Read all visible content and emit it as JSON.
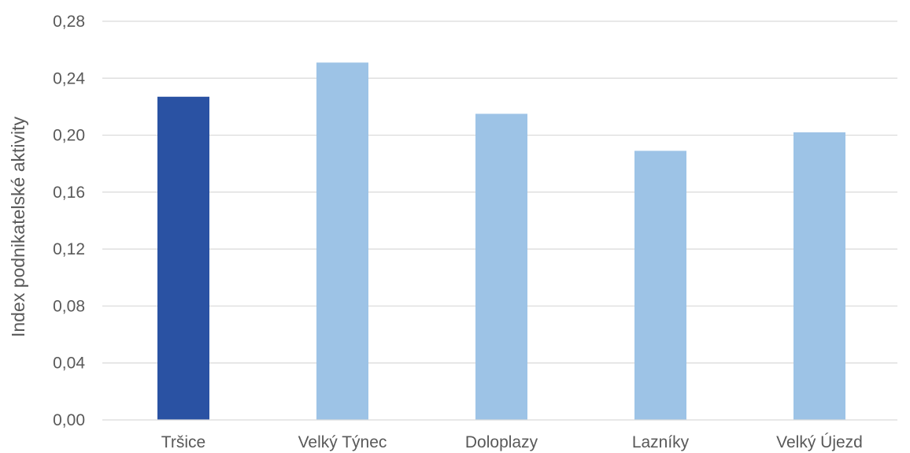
{
  "chart_data": {
    "type": "bar",
    "title": "",
    "xlabel": "",
    "ylabel": "Index podnikatelské aktivity",
    "categories": [
      "Tršice",
      "Velký Týnec",
      "Doloplazy",
      "Lazníky",
      "Velký Újezd"
    ],
    "values": [
      0.227,
      0.251,
      0.215,
      0.189,
      0.202
    ],
    "bar_colors": [
      "#2a52a3",
      "#9dc3e6",
      "#9dc3e6",
      "#9dc3e6",
      "#9dc3e6"
    ],
    "ylim": [
      0,
      0.28
    ],
    "yticks": [
      "0,00",
      "0,04",
      "0,08",
      "0,12",
      "0,16",
      "0,20",
      "0,24",
      "0,28"
    ],
    "grid": true,
    "legend": "none"
  }
}
